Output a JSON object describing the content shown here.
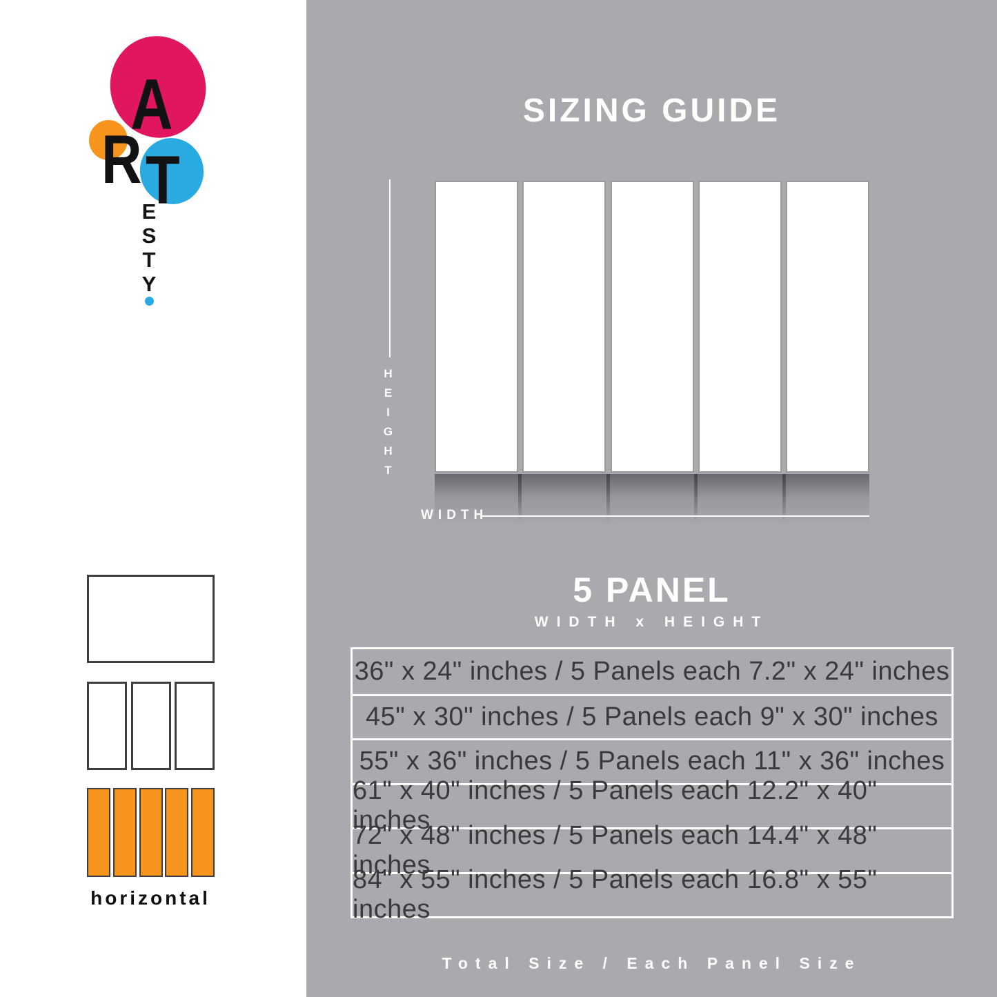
{
  "brand": {
    "big_letters": [
      "A",
      "R",
      "T"
    ],
    "small_letters": [
      "E",
      "S",
      "T",
      "Y"
    ],
    "colors": {
      "pink": "#E0175E",
      "orange": "#F7941E",
      "blue": "#29ABE2"
    }
  },
  "header": {
    "title": "SIZING GUIDE"
  },
  "diagram": {
    "panel_count": 5,
    "height_label": "HEIGHT",
    "width_label": "WIDTH"
  },
  "section": {
    "title": "5 PANEL",
    "subtitle": "WIDTH x HEIGHT"
  },
  "size_table": {
    "rows": [
      "36\" x 24\" inches / 5 Panels each 7.2\" x 24\" inches",
      "45\" x 30\" inches / 5 Panels each 9\" x 30\" inches",
      "55\" x 36\" inches / 5 Panels each 11\" x 36\" inches",
      "61\" x 40\" inches / 5 Panels each 12.2\" x 40\" inches",
      "72\" x 48\" inches / 5 Panels each 14.4\" x 48\" inches",
      "84\" x 55\" inches / 5 Panels each 16.8\" x 55\" inches"
    ]
  },
  "footer": {
    "note": "Total Size / Each Panel Size"
  },
  "sidebar": {
    "orientation_label": "horizontal"
  },
  "palette": {
    "background_gray": "#AAAAAE",
    "table_text": "#3A3A3D",
    "panel_white": "#FFFFFF",
    "thumb_orange": "#F7941E"
  }
}
